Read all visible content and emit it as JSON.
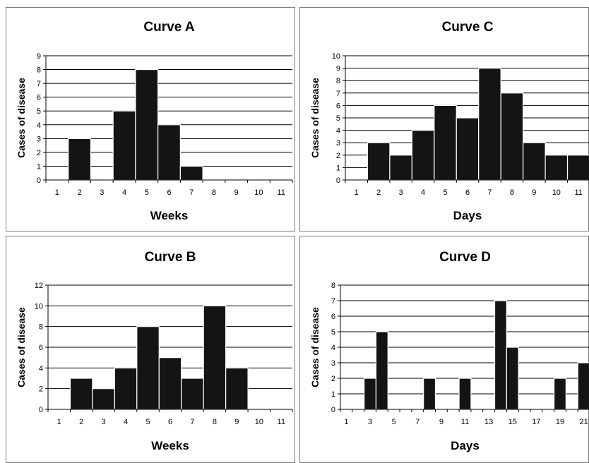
{
  "chart_data": [
    {
      "type": "bar",
      "title": "Curve A",
      "xlabel": "Weeks",
      "ylabel": "Cases of disease",
      "categories": [
        "1",
        "2",
        "3",
        "4",
        "5",
        "6",
        "7",
        "8",
        "9",
        "10",
        "11"
      ],
      "values": [
        0,
        3,
        0,
        5,
        8,
        4,
        1,
        0,
        0,
        0,
        0
      ],
      "ylim": [
        0,
        9
      ],
      "yticks": [
        0,
        1,
        2,
        3,
        4,
        5,
        6,
        7,
        8,
        9
      ],
      "grid": true,
      "bar_color": "#141414"
    },
    {
      "type": "bar",
      "title": "Curve C",
      "xlabel": "Days",
      "ylabel": "Cases of disease",
      "categories": [
        "1",
        "2",
        "3",
        "4",
        "5",
        "6",
        "7",
        "8",
        "9",
        "10",
        "11"
      ],
      "values": [
        0,
        3,
        2,
        4,
        6,
        5,
        9,
        7,
        3,
        2,
        2
      ],
      "ylim": [
        0,
        10
      ],
      "yticks": [
        0,
        1,
        2,
        3,
        4,
        5,
        6,
        7,
        8,
        9,
        10
      ],
      "grid": true,
      "bar_color": "#141414"
    },
    {
      "type": "bar",
      "title": "Curve B",
      "xlabel": "Weeks",
      "ylabel": "Cases of disease",
      "categories": [
        "1",
        "2",
        "3",
        "4",
        "5",
        "6",
        "7",
        "8",
        "9",
        "10",
        "11"
      ],
      "values": [
        0,
        3,
        2,
        4,
        8,
        5,
        3,
        10,
        4,
        0,
        0
      ],
      "ylim": [
        0,
        12
      ],
      "yticks": [
        0,
        2,
        4,
        6,
        8,
        10,
        12
      ],
      "grid": true,
      "bar_color": "#141414"
    },
    {
      "type": "bar",
      "title": "Curve D",
      "xlabel": "Days",
      "ylabel": "Cases of disease",
      "categories": [
        "1",
        "2",
        "3",
        "4",
        "5",
        "6",
        "7",
        "8",
        "9",
        "10",
        "11",
        "12",
        "13",
        "14",
        "15",
        "16",
        "17",
        "18",
        "19",
        "20",
        "21"
      ],
      "tick_labels": [
        "1",
        "",
        "3",
        "",
        "5",
        "",
        "7",
        "",
        "9",
        "",
        "11",
        "",
        "13",
        "",
        "15",
        "",
        "17",
        "",
        "19",
        "",
        "21"
      ],
      "values": [
        0,
        0,
        2,
        5,
        0,
        0,
        0,
        2,
        0,
        0,
        2,
        0,
        0,
        7,
        4,
        0,
        0,
        0,
        2,
        0,
        3
      ],
      "ylim": [
        0,
        8
      ],
      "yticks": [
        0,
        1,
        2,
        3,
        4,
        5,
        6,
        7,
        8
      ],
      "grid": true,
      "bar_color": "#141414"
    }
  ]
}
